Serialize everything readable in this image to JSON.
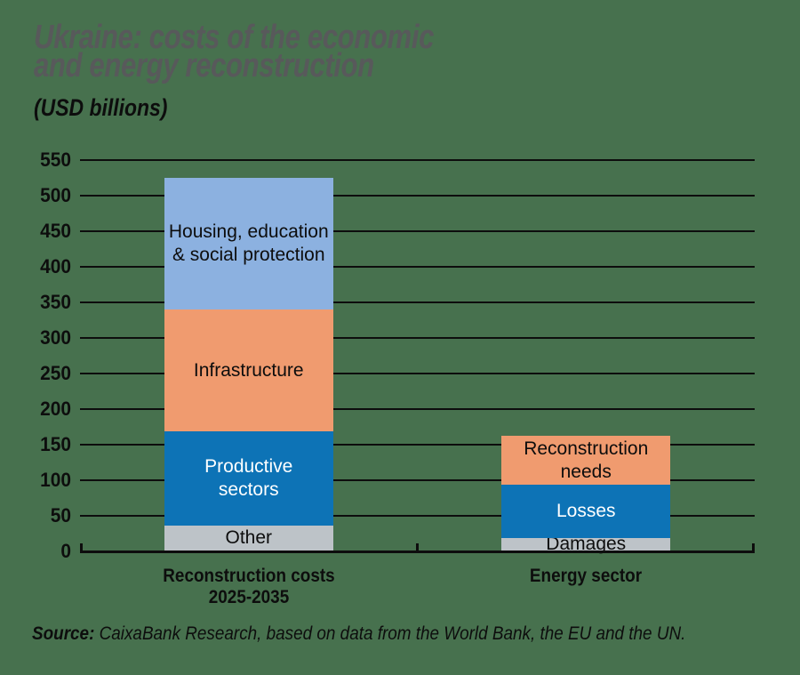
{
  "title": {
    "line1": "Ukraine: costs of the economic",
    "line2": "and energy reconstruction"
  },
  "subtitle": "(USD billions)",
  "source": {
    "label": "Source:",
    "text": " CaixaBank Research, based on data from the World Bank, the EU and the UN."
  },
  "colors": {
    "background": "#47714e",
    "title": "#58595b",
    "text": "#0d0d0d",
    "grid": "#0d0d0d",
    "gray": "#bdc3c8",
    "blue": "#0d73b6",
    "orange": "#f09b6f",
    "light_blue": "#8cb1e0"
  },
  "chart_data": {
    "type": "bar",
    "stacked": true,
    "title": "Ukraine: costs of the economic and energy reconstruction",
    "unit_label": "(USD billions)",
    "xlabel": "",
    "ylabel": "",
    "ylim": [
      0,
      550
    ],
    "yticks": [
      0,
      50,
      100,
      150,
      200,
      250,
      300,
      350,
      400,
      450,
      500,
      550
    ],
    "grid": "horizontal, black lines, bars drawn over grid",
    "legend_position": "none (segments labeled inline)",
    "categories": [
      "Reconstruction costs 2025-2035",
      "Energy sector"
    ],
    "bars": [
      {
        "category": "Reconstruction costs 2025-2035",
        "category_lines": [
          "Reconstruction costs",
          "2025-2035"
        ],
        "total": 524,
        "segments": [
          {
            "label": "Other",
            "lines": [
              "Other"
            ],
            "value": 35,
            "color": "#bdc3c8",
            "text_color": "#0d0d0d"
          },
          {
            "label": "Productive sectors",
            "lines": [
              "Productive",
              "sectors"
            ],
            "value": 132,
            "color": "#0d73b6",
            "text_color": "#ffffff"
          },
          {
            "label": "Infrastructure",
            "lines": [
              "Infrastructure"
            ],
            "value": 172,
            "color": "#f09b6f",
            "text_color": "#0d0d0d"
          },
          {
            "label": "Housing, education & social protection",
            "lines": [
              "Housing, education",
              "& social protection"
            ],
            "value": 185,
            "color": "#8cb1e0",
            "text_color": "#0d0d0d"
          }
        ]
      },
      {
        "category": "Energy sector",
        "category_lines": [
          "Energy sector"
        ],
        "total": 161,
        "segments": [
          {
            "label": "Damages",
            "lines": [
              "Damages"
            ],
            "value": 18,
            "color": "#bdc3c8",
            "text_color": "#0d0d0d"
          },
          {
            "label": "Losses",
            "lines": [
              "Losses"
            ],
            "value": 74,
            "color": "#0d73b6",
            "text_color": "#ffffff"
          },
          {
            "label": "Reconstruction needs",
            "lines": [
              "Reconstruction",
              "needs"
            ],
            "value": 69,
            "color": "#f09b6f",
            "text_color": "#0d0d0d"
          }
        ]
      }
    ]
  }
}
